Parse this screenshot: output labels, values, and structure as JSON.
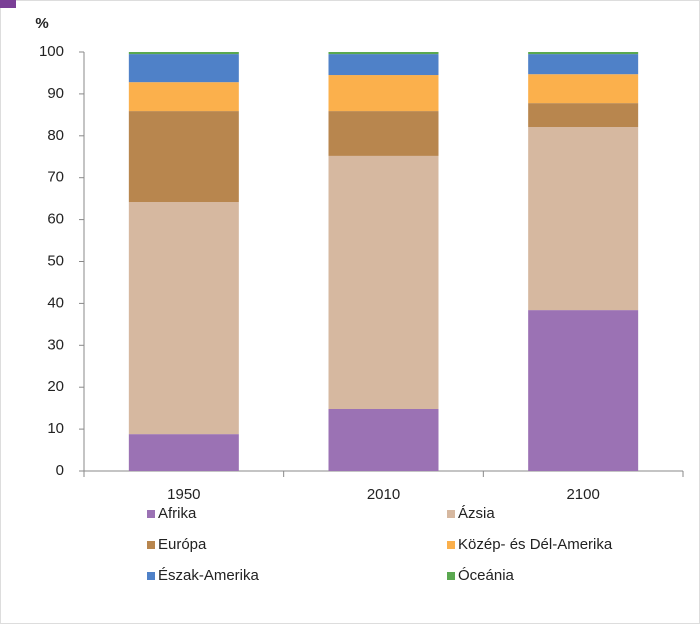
{
  "chart_data": {
    "type": "stacked_bar",
    "y_label": "%",
    "categories": [
      "1950",
      "2010",
      "2100"
    ],
    "series": [
      {
        "name": "Afrika",
        "color": "#9b72b4",
        "values": [
          8.8,
          14.8,
          38.4
        ]
      },
      {
        "name": "Ázsia",
        "color": "#d6b8a0",
        "values": [
          55.4,
          60.4,
          43.7
        ]
      },
      {
        "name": "Európa",
        "color": "#b8864e",
        "values": [
          21.7,
          10.7,
          5.7
        ]
      },
      {
        "name": "Közép- és Dél-Amerika",
        "color": "#fbb04c",
        "values": [
          6.9,
          8.6,
          6.9
        ]
      },
      {
        "name": "Észak-Amerika",
        "color": "#4f81c8",
        "values": [
          6.7,
          5.0,
          4.8
        ]
      },
      {
        "name": "Óceánia",
        "color": "#5aa850",
        "values": [
          0.5,
          0.5,
          0.5
        ]
      }
    ],
    "ylim": [
      0,
      100
    ],
    "yticks": [
      0,
      10,
      20,
      30,
      40,
      50,
      60,
      70,
      80,
      90,
      100
    ],
    "legend": "bottom"
  }
}
